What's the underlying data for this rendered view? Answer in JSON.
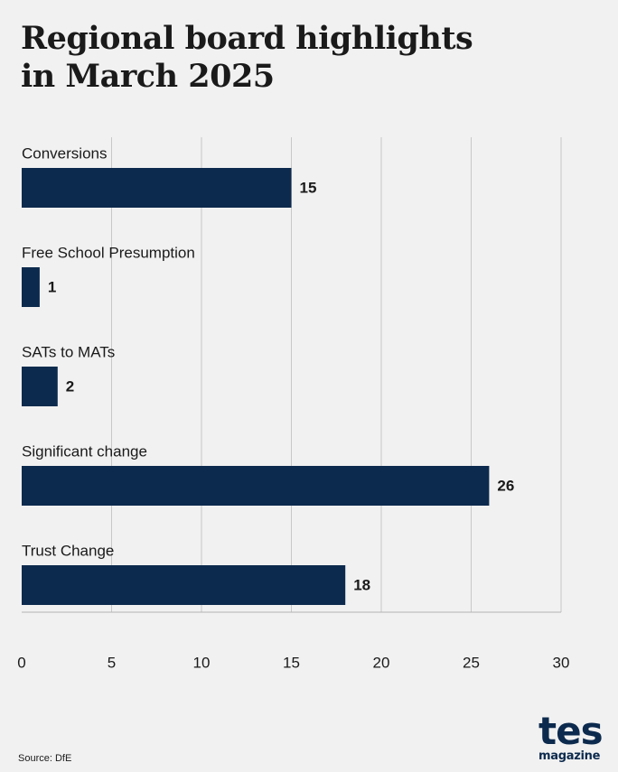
{
  "chart_data": {
    "type": "bar",
    "orientation": "horizontal",
    "title": "Regional board highlights in March 2025",
    "title_lines": [
      "Regional board highlights",
      "in March 2025"
    ],
    "categories": [
      "Conversions",
      "Free School Presumption",
      "SATs to MATs",
      "Significant change",
      "Trust Change"
    ],
    "values": [
      15,
      1,
      2,
      26,
      18
    ],
    "xticks": [
      0,
      5,
      10,
      15,
      20,
      25,
      30
    ],
    "xlim": [
      0,
      30
    ],
    "xlabel": "",
    "ylabel": "",
    "grid": true,
    "bar_color": "#0c2a4d"
  },
  "source": "Source: DfE",
  "logo": {
    "main": "tes",
    "sub": "magazine"
  }
}
